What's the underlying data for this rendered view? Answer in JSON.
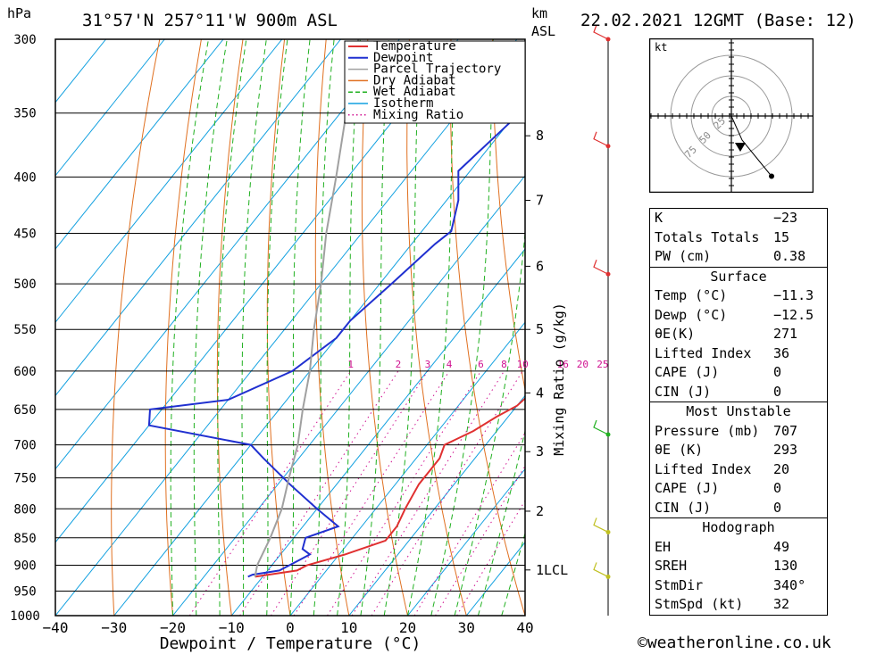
{
  "header": {
    "location": "31°57'N  257°11'W  900m  ASL",
    "datetime": "22.02.2021  12GMT  (Base: 12)",
    "pressure_unit": "hPa",
    "height_unit_1": "km",
    "height_unit_2": "ASL"
  },
  "chart_data": {
    "type": "line",
    "xlabel": "Dewpoint / Temperature (°C)",
    "ylabel": "hPa",
    "x_ticks": [
      "−40",
      "−30",
      "−20",
      "−10",
      "0",
      "10",
      "20",
      "30",
      "40"
    ],
    "xlim": [
      -40,
      40
    ],
    "pressure_levels": [
      "300",
      "350",
      "400",
      "450",
      "500",
      "550",
      "600",
      "650",
      "700",
      "750",
      "800",
      "850",
      "900",
      "950",
      "1000"
    ],
    "height_km": [
      {
        "label": "8",
        "p": 367
      },
      {
        "label": "7",
        "p": 420
      },
      {
        "label": "6",
        "p": 482
      },
      {
        "label": "5",
        "p": 550
      },
      {
        "label": "4",
        "p": 628
      },
      {
        "label": "3",
        "p": 710
      },
      {
        "label": "2",
        "p": 804
      },
      {
        "label": "1LCL",
        "p": 909
      }
    ],
    "right_axis_label": "Mixing Ratio (g/kg)",
    "mixing_ratio_labels": [
      "1",
      "2",
      "3",
      "4",
      "6",
      "8",
      "10",
      "16",
      "20",
      "25"
    ],
    "mixing_ratio_values": [
      1,
      2,
      3,
      4,
      6,
      8,
      10,
      16,
      20,
      25
    ],
    "legend": [
      "Temperature",
      "Dewpoint",
      "Parcel Trajectory",
      "Dry Adiabat",
      "Wet Adiabat",
      "Isotherm",
      "Mixing Ratio"
    ],
    "colors": {
      "Temperature": "#e03030",
      "Dewpoint": "#2030d0",
      "Parcel Trajectory": "#a0a0a0",
      "Dry Adiabat": "#e07020",
      "Wet Adiabat": "#20b020",
      "Isotherm": "#10a0e0",
      "Mixing Ratio": "#d01090"
    },
    "series": [
      {
        "name": "Temperature",
        "points": [
          [
            922,
            -11.3
          ],
          [
            910,
            -5
          ],
          [
            900,
            -4
          ],
          [
            880,
            1
          ],
          [
            855,
            6
          ],
          [
            830,
            6
          ],
          [
            800,
            5
          ],
          [
            760,
            4
          ],
          [
            720,
            4
          ],
          [
            700,
            3
          ],
          [
            680,
            6
          ],
          [
            660,
            8
          ],
          [
            645,
            10
          ],
          [
            620,
            11
          ],
          [
            580,
            13
          ],
          [
            560,
            14
          ],
          [
            540,
            14
          ],
          [
            500,
            12
          ],
          [
            460,
            8
          ],
          [
            445,
            5
          ],
          [
            430,
            5
          ],
          [
            400,
            2
          ],
          [
            360,
            -6
          ],
          [
            330,
            -12
          ],
          [
            300,
            -20
          ]
        ]
      },
      {
        "name": "Dewpoint",
        "points": [
          [
            922,
            -12.5
          ],
          [
            918,
            -12
          ],
          [
            910,
            -8
          ],
          [
            890,
            -6
          ],
          [
            880,
            -5
          ],
          [
            870,
            -7
          ],
          [
            850,
            -8
          ],
          [
            830,
            -4
          ],
          [
            800,
            -10
          ],
          [
            760,
            -18
          ],
          [
            720,
            -26
          ],
          [
            700,
            -30
          ],
          [
            672,
            -50
          ],
          [
            650,
            -52
          ],
          [
            637,
            -40
          ],
          [
            600,
            -33
          ],
          [
            560,
            -30
          ],
          [
            540,
            -30
          ],
          [
            500,
            -28
          ],
          [
            460,
            -26
          ],
          [
            448,
            -25
          ],
          [
            420,
            -28
          ],
          [
            395,
            -32
          ],
          [
            360,
            -30
          ],
          [
            300,
            -26
          ]
        ]
      },
      {
        "name": "Parcel Trajectory",
        "points": [
          [
            922,
            -11.3
          ],
          [
            900,
            -12.5
          ],
          [
            850,
            -14
          ],
          [
            800,
            -16
          ],
          [
            750,
            -19
          ],
          [
            700,
            -22
          ],
          [
            650,
            -26
          ],
          [
            600,
            -30
          ],
          [
            550,
            -35
          ],
          [
            500,
            -40
          ],
          [
            450,
            -46
          ],
          [
            400,
            -52
          ],
          [
            350,
            -59
          ],
          [
            300,
            -67
          ]
        ]
      }
    ],
    "wind_barbs": [
      {
        "p": 300,
        "color": "#e03030"
      },
      {
        "p": 375,
        "color": "#e03030"
      },
      {
        "p": 490,
        "color": "#e03030"
      },
      {
        "p": 685,
        "color": "#20b020"
      },
      {
        "p": 840,
        "color": "#c0c020"
      },
      {
        "p": 922,
        "color": "#c0c020"
      }
    ],
    "hodograph": {
      "unit": "kt",
      "rings": [
        "25",
        "50",
        "75"
      ],
      "points": [
        [
          0,
          0
        ],
        [
          8,
          -18
        ],
        [
          30,
          -45
        ]
      ]
    }
  },
  "indices": {
    "general": [
      {
        "label": "K",
        "value": "−23"
      },
      {
        "label": "Totals Totals",
        "value": "15"
      },
      {
        "label": "PW (cm)",
        "value": "0.38"
      }
    ],
    "surface_title": "Surface",
    "surface": [
      {
        "label": "Temp (°C)",
        "value": "−11.3"
      },
      {
        "label": "Dewp (°C)",
        "value": "−12.5"
      },
      {
        "label": "θE(K)",
        "value": "271"
      },
      {
        "label": "Lifted Index",
        "value": "36"
      },
      {
        "label": "CAPE (J)",
        "value": "0"
      },
      {
        "label": "CIN (J)",
        "value": "0"
      }
    ],
    "mu_title": "Most Unstable",
    "mu": [
      {
        "label": "Pressure (mb)",
        "value": "707"
      },
      {
        "label": "θE (K)",
        "value": "293"
      },
      {
        "label": "Lifted Index",
        "value": "20"
      },
      {
        "label": "CAPE (J)",
        "value": "0"
      },
      {
        "label": "CIN (J)",
        "value": "0"
      }
    ],
    "hodo_title": "Hodograph",
    "hodo": [
      {
        "label": "EH",
        "value": "49"
      },
      {
        "label": "SREH",
        "value": "130"
      },
      {
        "label": "StmDir",
        "value": "340°"
      },
      {
        "label": "StmSpd (kt)",
        "value": "32"
      }
    ]
  },
  "credit": "©weatheronline.co.uk"
}
